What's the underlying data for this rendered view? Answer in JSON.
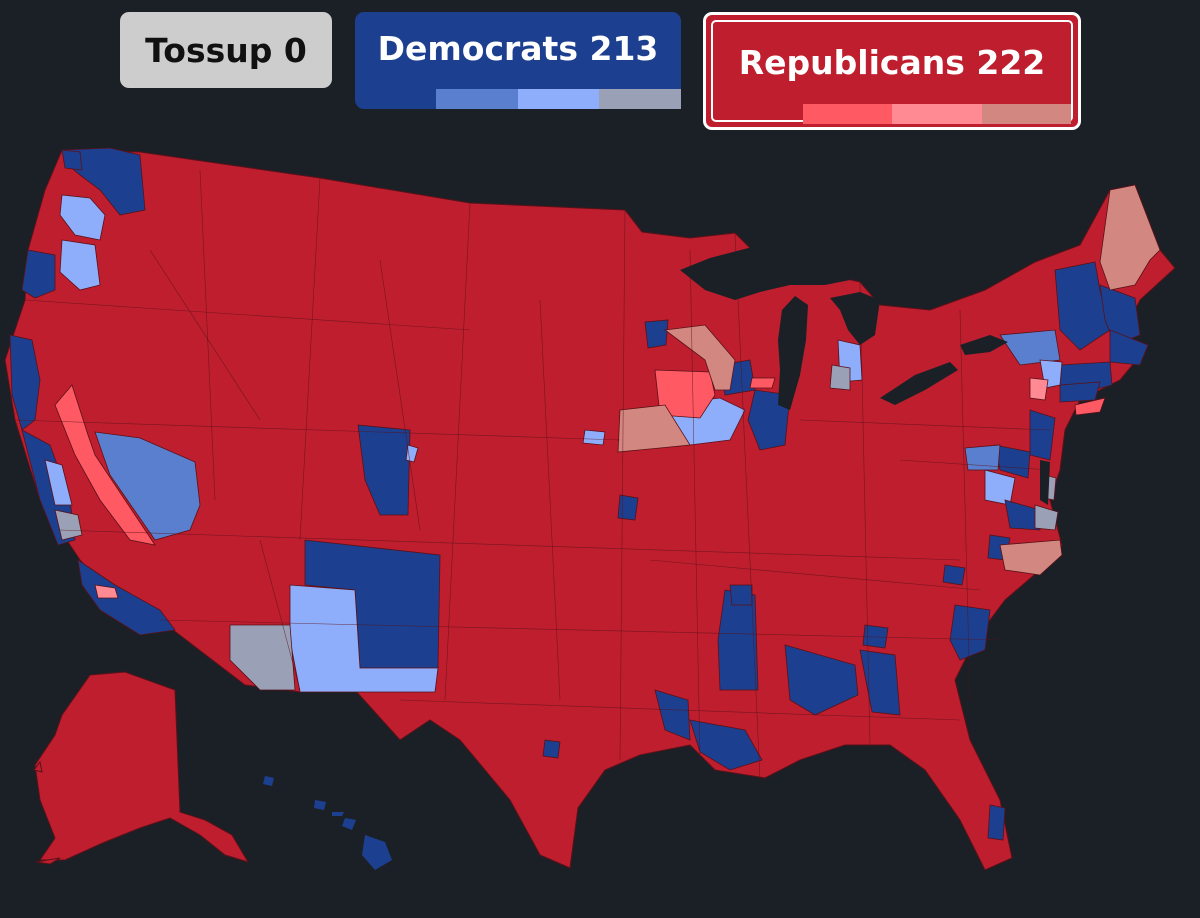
{
  "tally": {
    "tossup": {
      "label": "Tossup",
      "count": "0",
      "color": "#cdcdcd"
    },
    "democrats": {
      "label": "Democrats",
      "count": "213",
      "color": "#1c3f8f",
      "segment_colors": [
        "#5b7fcf",
        "#8eaefc",
        "#9aa1b6"
      ]
    },
    "republicans": {
      "label": "Republicans",
      "count": "222",
      "color": "#be1e2d",
      "segment_colors": [
        "#ff5a63",
        "#ff8a93",
        "#d28780"
      ]
    }
  },
  "map": {
    "background": "#1b2027",
    "border_color": "#5a1119",
    "rating_colors": {
      "safe_r": "#be1e2d",
      "likely_r": "#ff5a63",
      "lean_r": "#ff8a93",
      "tilt_r": "#d28780",
      "safe_d": "#1c3f8f",
      "likely_d": "#5b7fcf",
      "lean_d": "#8eaefc",
      "tilt_d": "#9aa1b6"
    }
  }
}
